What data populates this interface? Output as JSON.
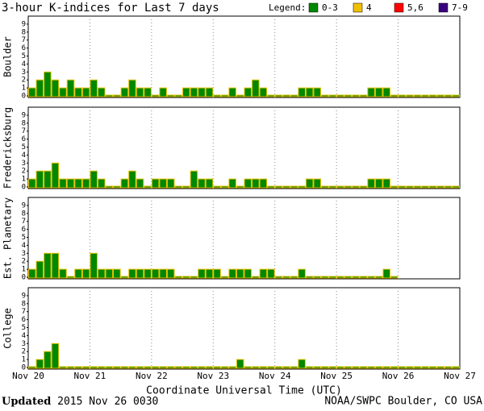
{
  "title": "3-hour K-indices for Last 7 days",
  "legend": {
    "label": "Legend:",
    "items": [
      {
        "label": "0-3",
        "color": "#008800"
      },
      {
        "label": "4",
        "color": "#f0c000"
      },
      {
        "label": "5,6",
        "color": "#ff0000"
      },
      {
        "label": "7-9",
        "color": "#3a0080"
      }
    ]
  },
  "footer": {
    "updated_label": "Updated",
    "updated": "2015 Nov 26 0030",
    "source": "NOAA/SWPC Boulder, CO USA"
  },
  "chart_data": [
    {
      "type": "bar",
      "ylabel": "Boulder",
      "color": "#008800",
      "ylim": [
        0,
        10
      ],
      "yticks": [
        0,
        1,
        2,
        3,
        4,
        5,
        6,
        7,
        8,
        9
      ],
      "values": [
        1,
        2,
        3,
        2,
        1,
        2,
        1,
        1,
        2,
        1,
        0,
        0,
        1,
        2,
        1,
        1,
        0,
        1,
        0,
        0,
        1,
        1,
        1,
        1,
        0,
        0,
        1,
        0,
        1,
        2,
        1,
        0,
        0,
        0,
        0,
        1,
        1,
        1,
        0,
        0,
        0,
        0,
        0,
        0,
        1,
        1,
        1,
        0,
        0,
        0,
        0,
        0,
        0,
        0,
        0,
        0
      ]
    },
    {
      "type": "bar",
      "ylabel": "Fredericksburg",
      "color": "#008800",
      "ylim": [
        0,
        10
      ],
      "yticks": [
        0,
        1,
        2,
        3,
        4,
        5,
        6,
        7,
        8,
        9
      ],
      "values": [
        1,
        2,
        2,
        3,
        1,
        1,
        1,
        1,
        2,
        1,
        0,
        0,
        1,
        2,
        1,
        0,
        1,
        1,
        1,
        0,
        0,
        2,
        1,
        1,
        0,
        0,
        1,
        0,
        1,
        1,
        1,
        0,
        0,
        0,
        0,
        0,
        1,
        1,
        0,
        0,
        0,
        0,
        0,
        0,
        1,
        1,
        1,
        0,
        0,
        0,
        0,
        0,
        0,
        0,
        0,
        0
      ]
    },
    {
      "type": "bar",
      "ylabel": "Est. Planetary",
      "color": "#008800",
      "ylim": [
        0,
        10
      ],
      "yticks": [
        0,
        1,
        2,
        3,
        4,
        5,
        6,
        7,
        8,
        9
      ],
      "values": [
        1,
        2,
        3,
        3,
        1,
        0,
        1,
        1,
        3,
        1,
        1,
        1,
        0,
        1,
        1,
        1,
        1,
        1,
        1,
        0,
        0,
        0,
        1,
        1,
        1,
        0,
        1,
        1,
        1,
        0,
        1,
        1,
        0,
        0,
        0,
        1,
        0,
        0,
        0,
        0,
        0,
        0,
        0,
        0,
        0,
        0,
        1,
        0,
        null,
        null,
        null,
        null,
        null,
        null,
        null,
        null
      ]
    },
    {
      "type": "bar",
      "ylabel": "College",
      "color": "#008800",
      "ylim": [
        0,
        10
      ],
      "yticks": [
        0,
        1,
        2,
        3,
        4,
        5,
        6,
        7,
        8,
        9
      ],
      "values": [
        0,
        1,
        2,
        3,
        0,
        0,
        0,
        0,
        0,
        0,
        0,
        0,
        0,
        0,
        0,
        0,
        0,
        0,
        0,
        0,
        0,
        0,
        0,
        0,
        0,
        0,
        0,
        1,
        0,
        0,
        0,
        0,
        0,
        0,
        0,
        1,
        0,
        0,
        0,
        0,
        0,
        0,
        0,
        0,
        0,
        0,
        0,
        0,
        0,
        0,
        0,
        0,
        0,
        0,
        0,
        0
      ],
      "xlabel": "Coordinate Universal Time (UTC)",
      "xtick_labels": [
        "Nov 20",
        "Nov 21",
        "Nov 22",
        "Nov 23",
        "Nov 24",
        "Nov 25",
        "Nov 26",
        "Nov 27"
      ]
    }
  ]
}
